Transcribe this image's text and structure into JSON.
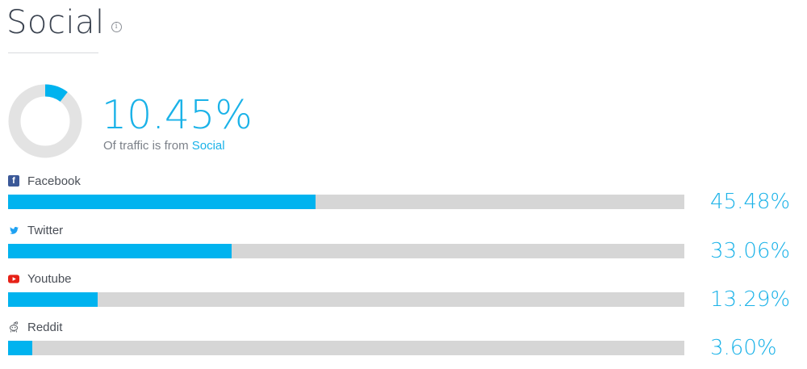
{
  "header": {
    "title": "Social",
    "info_icon": "info-icon"
  },
  "summary": {
    "percent": "10.45%",
    "percent_value": 10.45,
    "subtitle_prefix": "Of traffic is from",
    "subtitle_link": "Social"
  },
  "colors": {
    "accent": "#00b3ef",
    "track": "#d6d6d6",
    "donut_track": "#e3e3e3",
    "facebook": "#3b5998",
    "twitter": "#1da1f2",
    "youtube": "#e62117"
  },
  "channels": [
    {
      "name": "Facebook",
      "icon": "facebook-icon",
      "percent": "45.48%",
      "value": 45.48
    },
    {
      "name": "Twitter",
      "icon": "twitter-icon",
      "percent": "33.06%",
      "value": 33.06
    },
    {
      "name": "Youtube",
      "icon": "youtube-icon",
      "percent": "13.29%",
      "value": 13.29
    },
    {
      "name": "Reddit",
      "icon": "reddit-icon",
      "percent": "3.60%",
      "value": 3.6
    }
  ]
}
